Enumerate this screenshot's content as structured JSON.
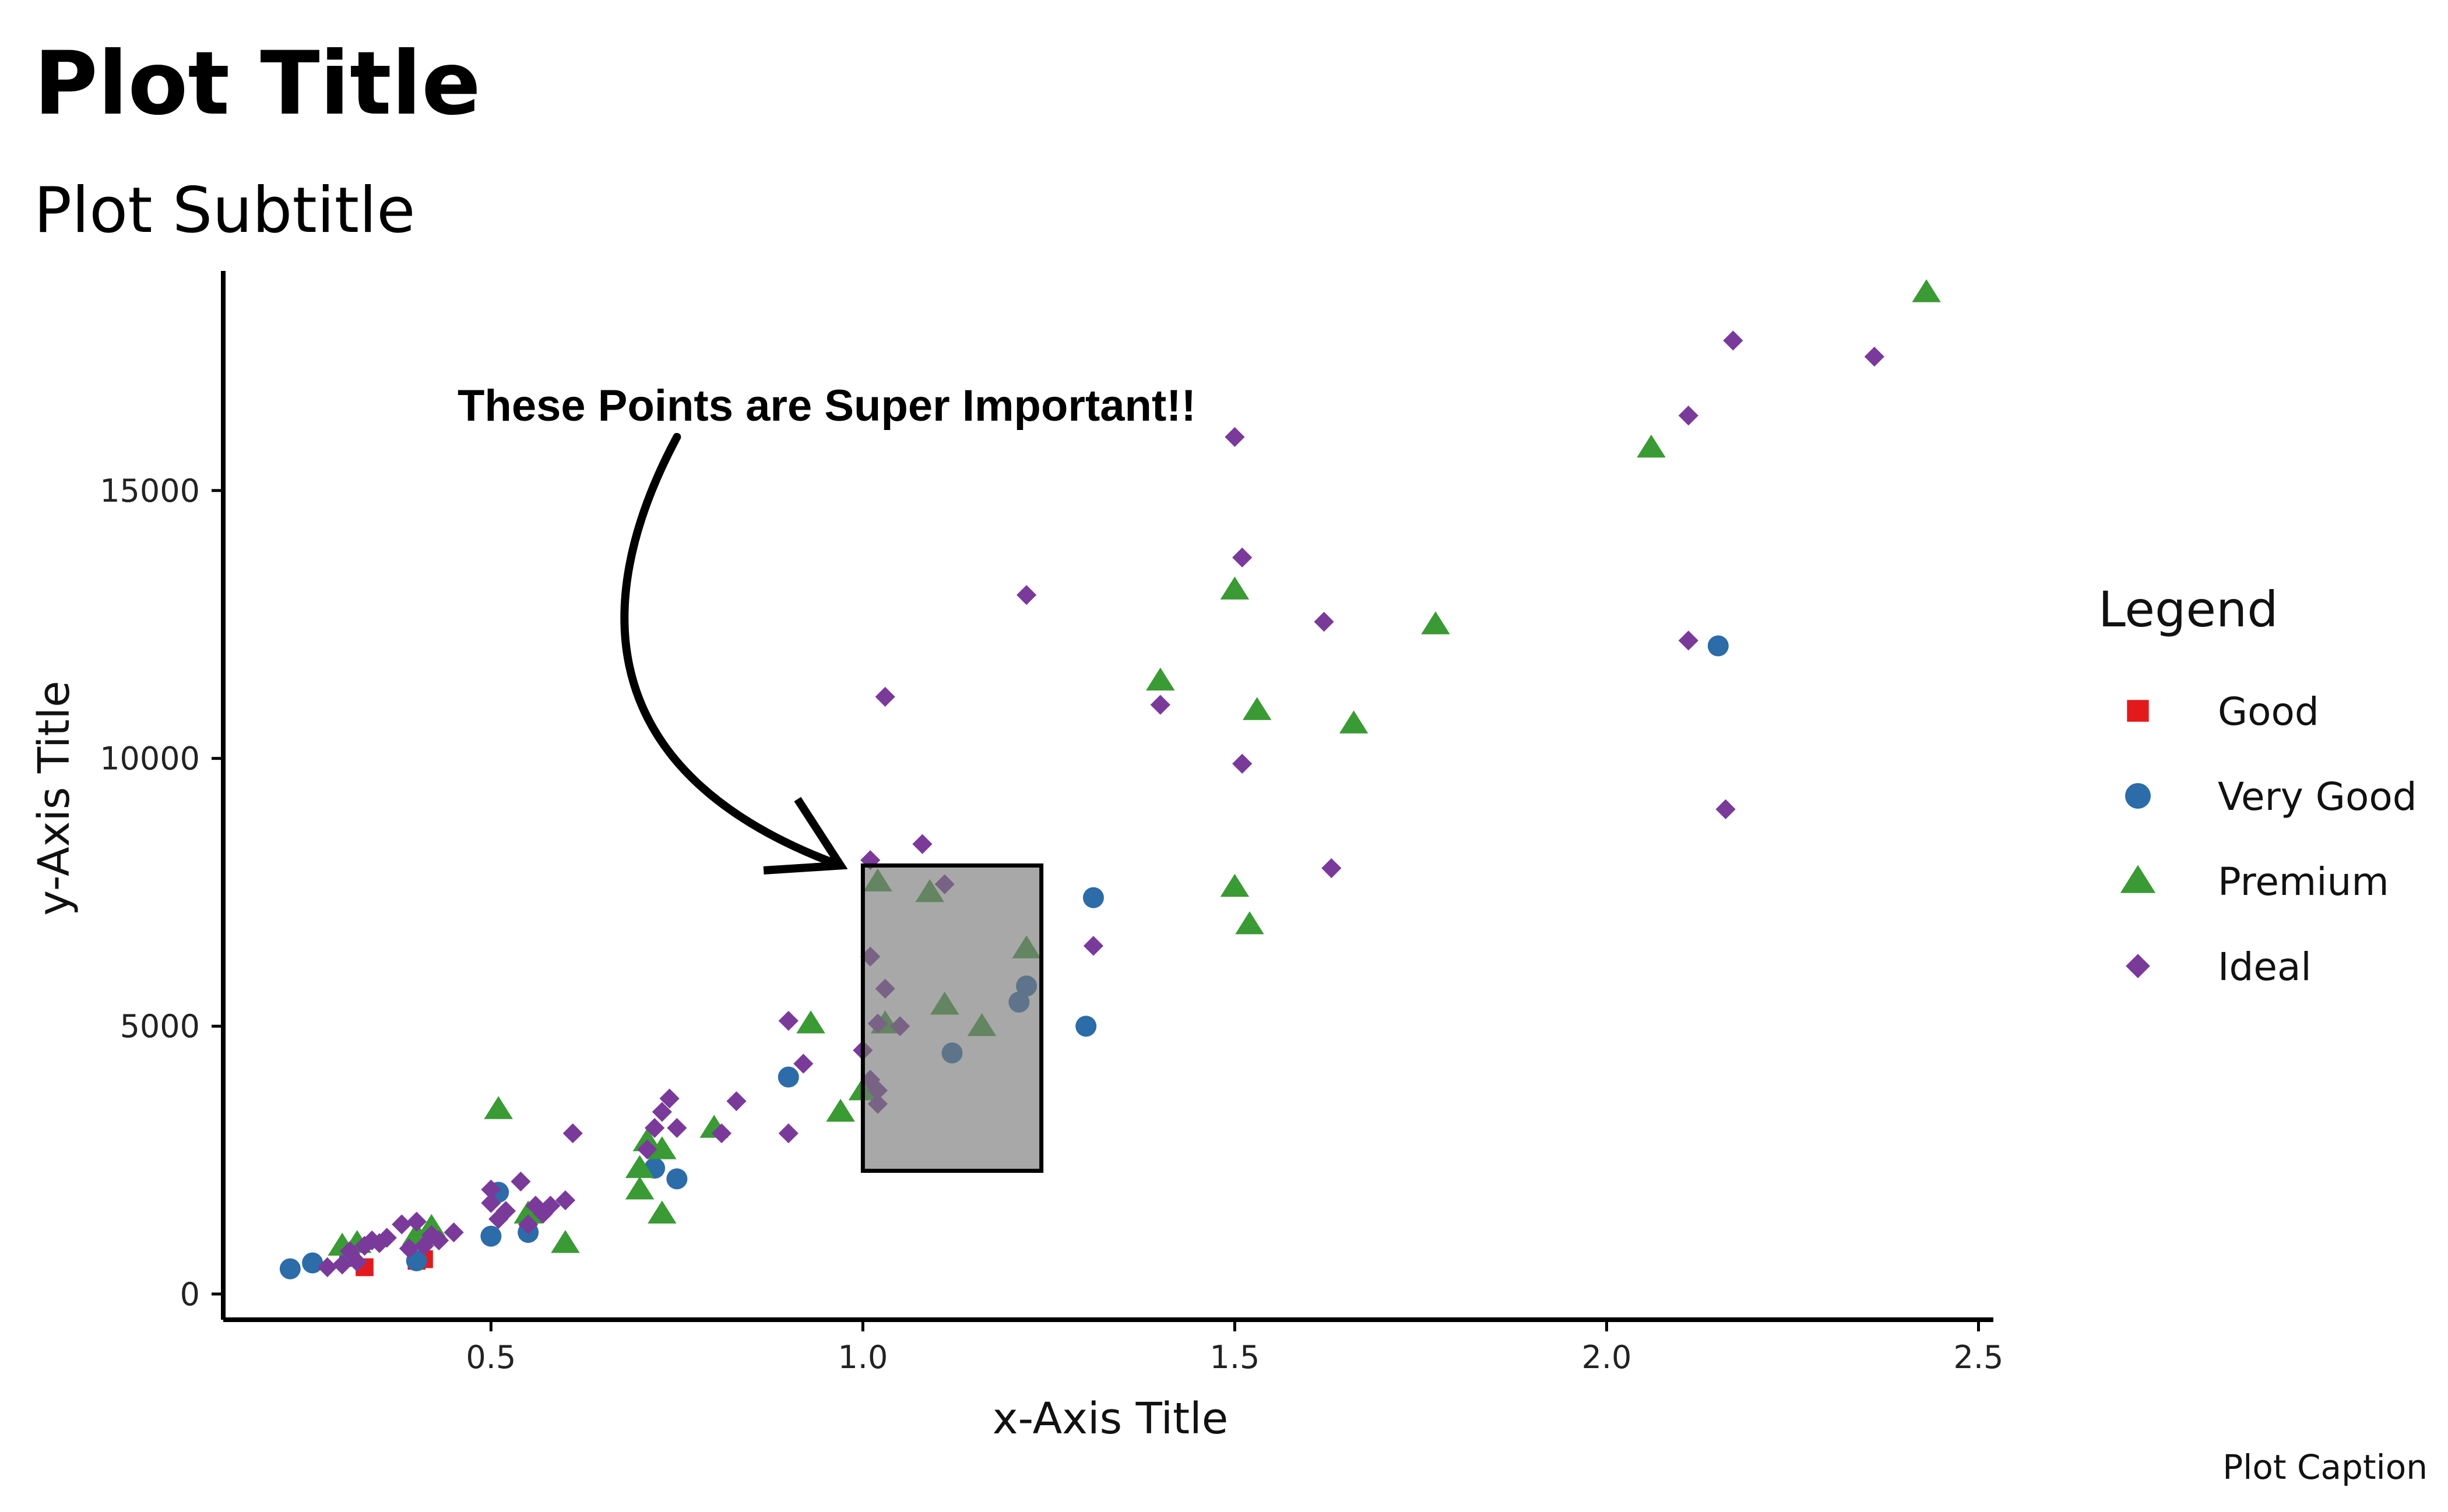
{
  "chart_data": {
    "type": "scatter",
    "title": "Plot Title",
    "subtitle": "Plot Subtitle",
    "xlabel": "x-Axis Title",
    "ylabel": "y-Axis Title",
    "caption": "Plot Caption",
    "xlim": [
      0.14,
      2.52
    ],
    "ylim": [
      -480,
      19100
    ],
    "x_ticks": [
      0.5,
      1.0,
      1.5,
      2.0,
      2.5
    ],
    "x_tick_labels": [
      "0.5",
      "1.0",
      "1.5",
      "2.0",
      "2.5"
    ],
    "y_ticks": [
      0,
      5000,
      10000,
      15000
    ],
    "y_tick_labels": [
      "0",
      "5000",
      "10000",
      "15000"
    ],
    "grid": false,
    "legend": {
      "title": "Legend",
      "position": "right"
    },
    "annotation": {
      "text": "These Points are Super Important!!",
      "arrow_from": [
        0.75,
        16000
      ],
      "arrow_to": [
        0.97,
        8000
      ],
      "highlight_rect": {
        "x": [
          1.0,
          1.24
        ],
        "y": [
          2300,
          8000
        ]
      }
    },
    "series": [
      {
        "name": "Good",
        "color": "#e31a1c",
        "shape": "square",
        "points": [
          [
            0.33,
            500
          ],
          [
            0.4,
            620
          ],
          [
            0.41,
            650
          ],
          [
            0.55,
            1200
          ]
        ]
      },
      {
        "name": "Very Good",
        "color": "#2c6ca8",
        "shape": "circle",
        "points": [
          [
            0.23,
            470
          ],
          [
            0.26,
            580
          ],
          [
            0.31,
            700
          ],
          [
            0.4,
            620
          ],
          [
            0.5,
            1080
          ],
          [
            0.51,
            1900
          ],
          [
            0.55,
            1150
          ],
          [
            0.72,
            2350
          ],
          [
            0.75,
            2150
          ],
          [
            0.9,
            4050
          ],
          [
            1.12,
            4500
          ],
          [
            1.21,
            5450
          ],
          [
            1.22,
            5750
          ],
          [
            1.3,
            5000
          ],
          [
            1.31,
            7400
          ],
          [
            2.15,
            12100
          ]
        ]
      },
      {
        "name": "Premium",
        "color": "#3a9a34",
        "shape": "triangle",
        "points": [
          [
            0.3,
            900
          ],
          [
            0.32,
            950
          ],
          [
            0.4,
            1100
          ],
          [
            0.42,
            1250
          ],
          [
            0.51,
            3450
          ],
          [
            0.55,
            1500
          ],
          [
            0.6,
            950
          ],
          [
            0.7,
            1950
          ],
          [
            0.7,
            2350
          ],
          [
            0.71,
            2850
          ],
          [
            0.73,
            2700
          ],
          [
            0.73,
            1500
          ],
          [
            0.8,
            3100
          ],
          [
            0.93,
            5050
          ],
          [
            0.97,
            3400
          ],
          [
            1.0,
            3800
          ],
          [
            1.02,
            7700
          ],
          [
            1.03,
            5050
          ],
          [
            1.09,
            7500
          ],
          [
            1.11,
            5400
          ],
          [
            1.16,
            5000
          ],
          [
            1.22,
            6450
          ],
          [
            1.4,
            11450
          ],
          [
            1.5,
            13150
          ],
          [
            1.5,
            7600
          ],
          [
            1.52,
            6900
          ],
          [
            1.53,
            10900
          ],
          [
            1.66,
            10650
          ],
          [
            1.77,
            12500
          ],
          [
            2.06,
            15800
          ],
          [
            2.43,
            18700
          ]
        ]
      },
      {
        "name": "Ideal",
        "color": "#7a3a9a",
        "shape": "diamond",
        "points": [
          [
            0.28,
            500
          ],
          [
            0.3,
            550
          ],
          [
            0.31,
            800
          ],
          [
            0.32,
            600
          ],
          [
            0.33,
            900
          ],
          [
            0.34,
            1000
          ],
          [
            0.35,
            950
          ],
          [
            0.36,
            1050
          ],
          [
            0.38,
            1300
          ],
          [
            0.39,
            850
          ],
          [
            0.4,
            1350
          ],
          [
            0.41,
            900
          ],
          [
            0.42,
            1100
          ],
          [
            0.43,
            1000
          ],
          [
            0.45,
            1150
          ],
          [
            0.5,
            1700
          ],
          [
            0.5,
            1950
          ],
          [
            0.51,
            1400
          ],
          [
            0.52,
            1550
          ],
          [
            0.54,
            2100
          ],
          [
            0.55,
            1300
          ],
          [
            0.56,
            1650
          ],
          [
            0.57,
            1500
          ],
          [
            0.58,
            1650
          ],
          [
            0.6,
            1750
          ],
          [
            0.61,
            3000
          ],
          [
            0.71,
            2700
          ],
          [
            0.72,
            3100
          ],
          [
            0.73,
            3400
          ],
          [
            0.74,
            3650
          ],
          [
            0.75,
            3100
          ],
          [
            0.81,
            3000
          ],
          [
            0.83,
            3600
          ],
          [
            0.9,
            5100
          ],
          [
            0.9,
            3000
          ],
          [
            0.92,
            4300
          ],
          [
            1.0,
            4550
          ],
          [
            1.01,
            8100
          ],
          [
            1.01,
            6300
          ],
          [
            1.01,
            4000
          ],
          [
            1.02,
            5050
          ],
          [
            1.02,
            3800
          ],
          [
            1.02,
            3550
          ],
          [
            1.03,
            11150
          ],
          [
            1.03,
            5700
          ],
          [
            1.05,
            5000
          ],
          [
            1.08,
            8400
          ],
          [
            1.11,
            7650
          ],
          [
            1.22,
            13050
          ],
          [
            1.31,
            6500
          ],
          [
            1.4,
            11000
          ],
          [
            1.5,
            16000
          ],
          [
            1.51,
            13750
          ],
          [
            1.51,
            9900
          ],
          [
            1.62,
            12550
          ],
          [
            1.63,
            7950
          ],
          [
            2.11,
            16400
          ],
          [
            2.11,
            12200
          ],
          [
            2.16,
            9050
          ],
          [
            2.17,
            17800
          ],
          [
            2.36,
            17500
          ]
        ]
      }
    ]
  }
}
